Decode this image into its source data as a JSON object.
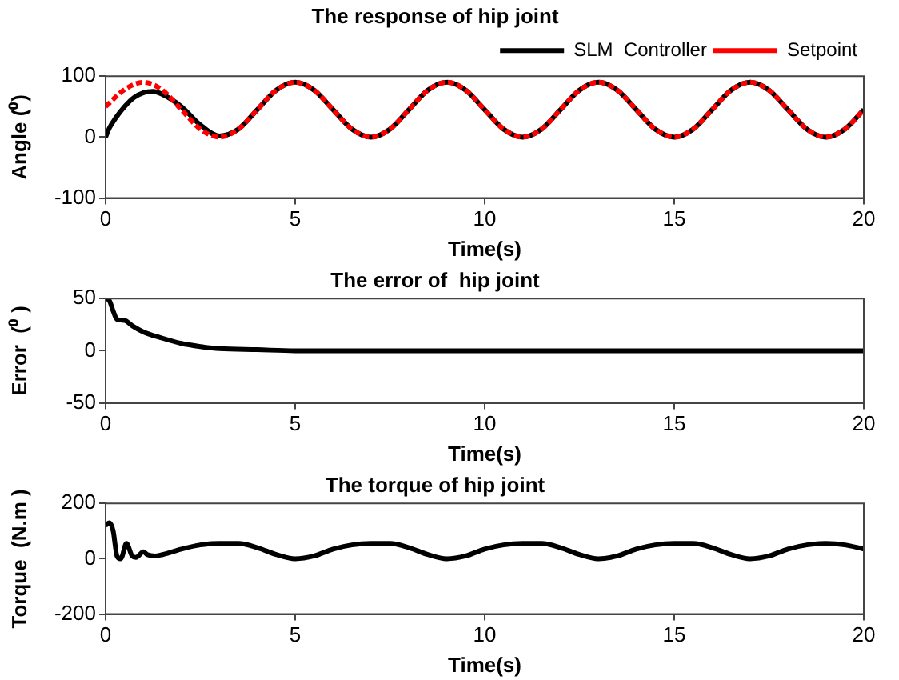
{
  "chart_data": [
    {
      "type": "line",
      "title": "The response of hip joint",
      "xlabel": "Time(s)",
      "ylabel": "Angle (⁰)",
      "xlim": [
        0,
        20
      ],
      "xticks": [
        0,
        5,
        10,
        15,
        20
      ],
      "ylim": [
        -100,
        100
      ],
      "yticks": [
        -100,
        0,
        100
      ],
      "grid": false,
      "legend": "top right",
      "series": [
        {
          "name": "SLM  Controller",
          "color": "#000000",
          "line_style": "solid",
          "x": [
            0,
            0.1,
            0.25,
            0.5,
            0.75,
            1,
            1.25,
            1.5,
            2,
            2.5,
            3,
            3.5,
            4,
            4.5,
            5,
            5.5,
            6,
            6.5,
            7,
            7.5,
            8,
            8.5,
            9,
            9.5,
            10,
            10.5,
            11,
            11.5,
            12,
            12.5,
            13,
            13.5,
            14,
            14.5,
            15,
            15.5,
            16,
            16.5,
            17,
            17.5,
            18,
            18.5,
            19,
            19.5,
            20
          ],
          "values": [
            0,
            15,
            30,
            50,
            65,
            73,
            75,
            70,
            50,
            20,
            2,
            13,
            45,
            77,
            90,
            77,
            45,
            13,
            0,
            13,
            45,
            77,
            90,
            77,
            45,
            13,
            0,
            13,
            45,
            77,
            90,
            77,
            45,
            13,
            0,
            13,
            45,
            77,
            90,
            77,
            45,
            13,
            0,
            13,
            45
          ]
        },
        {
          "name": "Setpoint",
          "color": "#ff0000",
          "line_style": "dashed",
          "x": [
            0,
            0.5,
            1,
            1.5,
            2,
            2.5,
            3,
            3.5,
            4,
            4.5,
            5,
            5.5,
            6,
            6.5,
            7,
            7.5,
            8,
            8.5,
            9,
            9.5,
            10,
            10.5,
            11,
            11.5,
            12,
            12.5,
            13,
            13.5,
            14,
            14.5,
            15,
            15.5,
            16,
            16.5,
            17,
            17.5,
            18,
            18.5,
            19,
            19.5,
            20
          ],
          "values": [
            50,
            78,
            90,
            77,
            45,
            13,
            0,
            13,
            45,
            77,
            90,
            77,
            45,
            13,
            0,
            13,
            45,
            77,
            90,
            77,
            45,
            13,
            0,
            13,
            45,
            77,
            90,
            77,
            45,
            13,
            0,
            13,
            45,
            77,
            90,
            77,
            45,
            13,
            0,
            13,
            45
          ]
        }
      ]
    },
    {
      "type": "line",
      "title": "The error of  hip joint",
      "xlabel": "Time(s)",
      "ylabel": "Error  (⁰ )",
      "xlim": [
        0,
        20
      ],
      "xticks": [
        0,
        5,
        10,
        15,
        20
      ],
      "ylim": [
        -50,
        50
      ],
      "yticks": [
        -50,
        0,
        50
      ],
      "grid": false,
      "series": [
        {
          "color": "#000000",
          "line_style": "solid",
          "x": [
            0,
            0.1,
            0.2,
            0.3,
            0.5,
            0.7,
            1,
            1.5,
            2,
            2.5,
            3,
            4,
            5,
            10,
            15,
            20
          ],
          "values": [
            50,
            48,
            38,
            30,
            29,
            24,
            18,
            12,
            7,
            4,
            2,
            1,
            0,
            0,
            0,
            0
          ]
        }
      ]
    },
    {
      "type": "line",
      "title": "The torque of hip joint",
      "xlabel": "Time(s)",
      "ylabel": "Torque  (N.m )",
      "xlim": [
        0,
        20
      ],
      "xticks": [
        0,
        5,
        10,
        15,
        20
      ],
      "ylim": [
        -200,
        200
      ],
      "yticks": [
        -200,
        0,
        200
      ],
      "grid": false,
      "series": [
        {
          "color": "#000000",
          "line_style": "solid",
          "x": [
            0,
            0.1,
            0.2,
            0.3,
            0.4,
            0.55,
            0.7,
            0.8,
            1,
            1.1,
            1.3,
            1.5,
            2,
            2.5,
            3,
            3.5,
            4,
            4.5,
            5,
            5.5,
            6,
            6.5,
            7,
            7.5,
            8,
            8.5,
            9,
            9.5,
            10,
            10.5,
            11,
            11.5,
            12,
            12.5,
            13,
            13.5,
            14,
            14.5,
            15,
            15.5,
            16,
            16.5,
            17,
            17.5,
            18,
            18.5,
            19,
            19.5,
            20
          ],
          "values": [
            120,
            130,
            100,
            10,
            0,
            55,
            10,
            5,
            25,
            15,
            10,
            15,
            35,
            50,
            55,
            55,
            40,
            15,
            0,
            10,
            35,
            50,
            55,
            55,
            40,
            15,
            0,
            10,
            35,
            50,
            55,
            55,
            40,
            15,
            0,
            10,
            35,
            50,
            55,
            55,
            40,
            15,
            0,
            10,
            35,
            50,
            55,
            50,
            35
          ]
        }
      ]
    }
  ]
}
